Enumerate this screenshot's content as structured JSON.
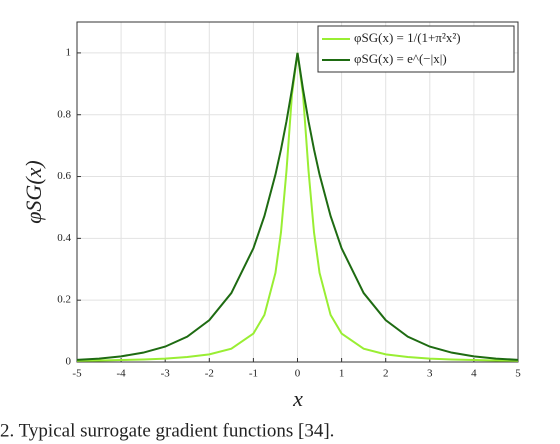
{
  "chart_data": {
    "type": "line",
    "x_label": "x",
    "y_label": "φSG(x)",
    "caption": "2. Typical surrogate gradient functions [34].",
    "x": [
      -5,
      -4.5,
      -4,
      -3.5,
      -3,
      -2.5,
      -2,
      -1.5,
      -1,
      -0.75,
      -0.5,
      -0.375,
      -0.25,
      -0.125,
      0,
      0.125,
      0.25,
      0.375,
      0.5,
      0.75,
      1,
      1.5,
      2,
      2.5,
      3,
      3.5,
      4,
      4.5,
      5
    ],
    "series": [
      {
        "name": "φSG(x) = 1/(1+π²x²)",
        "color": "#99ee33",
        "values": [
          0.00404,
          0.00498,
          0.00629,
          0.0082,
          0.0111,
          0.016,
          0.0247,
          0.0431,
          0.092,
          0.1526,
          0.2884,
          0.4188,
          0.6184,
          0.8664,
          1,
          0.8664,
          0.6184,
          0.4188,
          0.2884,
          0.1526,
          0.092,
          0.0431,
          0.0247,
          0.016,
          0.0111,
          0.0082,
          0.00629,
          0.00498,
          0.00404
        ]
      },
      {
        "name": "φSG(x) = e^(−|x|)",
        "color": "#1e6b12",
        "values": [
          0.0067,
          0.0111,
          0.0183,
          0.0302,
          0.0498,
          0.0821,
          0.1353,
          0.2231,
          0.3679,
          0.4724,
          0.6065,
          0.6873,
          0.7788,
          0.8825,
          1,
          0.8825,
          0.7788,
          0.6873,
          0.6065,
          0.4724,
          0.3679,
          0.2231,
          0.1353,
          0.0821,
          0.0498,
          0.0302,
          0.0183,
          0.0111,
          0.0067
        ]
      }
    ],
    "xlim": [
      -5,
      5
    ],
    "xticks": [
      -5,
      -4,
      -3,
      -2,
      -1,
      0,
      1,
      2,
      3,
      4,
      5
    ],
    "ylim": [
      0,
      1.1
    ],
    "yticks": [
      0,
      0.2,
      0.4,
      0.6,
      0.8,
      1
    ],
    "grid": true,
    "legend": "top-right"
  }
}
